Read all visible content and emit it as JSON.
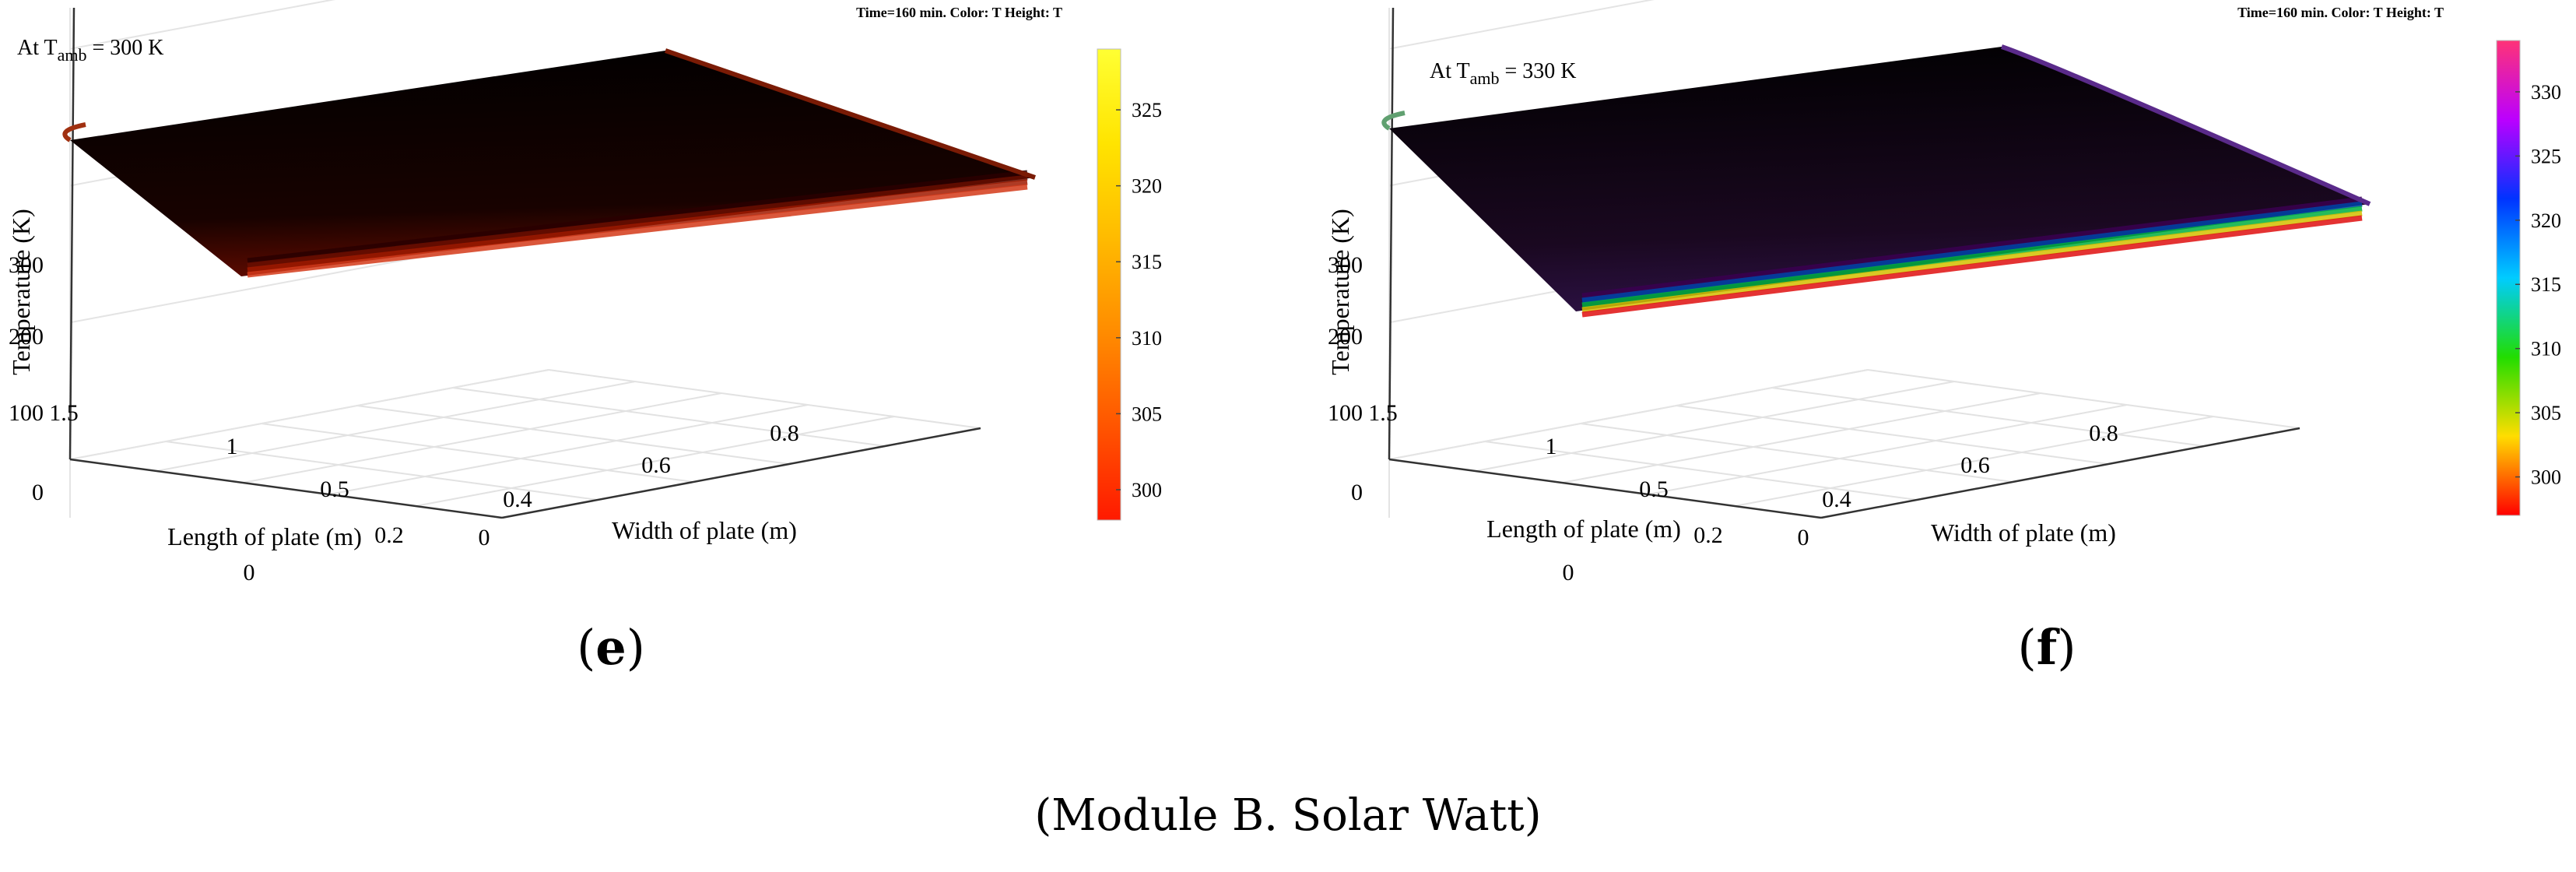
{
  "caption": "(Module B. Solar Watt)",
  "chart_data": [
    {
      "type": "surface",
      "panel_label": "e",
      "annotation": {
        "prefix": "At T",
        "subscript": "amb",
        "suffix": " = 300 K"
      },
      "info_text": "Time=160 min.  Color: T  Height: T",
      "xlabel": "Width of plate (m)",
      "ylabel": "Length of plate (m)",
      "zlabel": "Temperature (K)",
      "x_ticks": [
        0,
        0.2,
        0.4,
        0.6,
        0.8
      ],
      "y_ticks": [
        0,
        0.5,
        1,
        1.5
      ],
      "z_ticks": [
        0,
        100,
        200,
        300
      ],
      "xlim": [
        0,
        0.95
      ],
      "ylim": [
        0,
        1.6
      ],
      "zlim": [
        0,
        330
      ],
      "surface_temperature_approx": 300,
      "edge_temperature_approx": 298,
      "colorbar": {
        "colormap": "hot",
        "ticks": [
          300,
          305,
          310,
          315,
          320,
          325
        ],
        "range": [
          298,
          329
        ],
        "colors": [
          "#ff1a00",
          "#ff5500",
          "#ff8c00",
          "#ffbb00",
          "#ffe400",
          "#ffff33"
        ]
      }
    },
    {
      "type": "surface",
      "panel_label": "f",
      "annotation": {
        "prefix": "At T",
        "subscript": "amb",
        "suffix": " = 330 K"
      },
      "info_text": "Time=160 min.  Color: T  Height: T",
      "xlabel": "Width of plate (m)",
      "ylabel": "Length of plate (m)",
      "zlabel": "Temperature (K)",
      "x_ticks": [
        0,
        0.2,
        0.4,
        0.6,
        0.8
      ],
      "y_ticks": [
        0,
        0.5,
        1,
        1.5
      ],
      "z_ticks": [
        0,
        100,
        200,
        300
      ],
      "xlim": [
        0,
        0.95
      ],
      "ylim": [
        0,
        1.6
      ],
      "zlim": [
        0,
        330
      ],
      "surface_temperature_approx": 300,
      "edge_temperature_approx": 298,
      "colorbar": {
        "colormap": "hsv",
        "ticks": [
          300,
          305,
          310,
          315,
          320,
          325,
          330
        ],
        "range": [
          297,
          334
        ],
        "colors": [
          "#ff0000",
          "#ffdd00",
          "#22dd00",
          "#00ccff",
          "#0033ff",
          "#bb00ff",
          "#ff3377"
        ]
      }
    }
  ]
}
